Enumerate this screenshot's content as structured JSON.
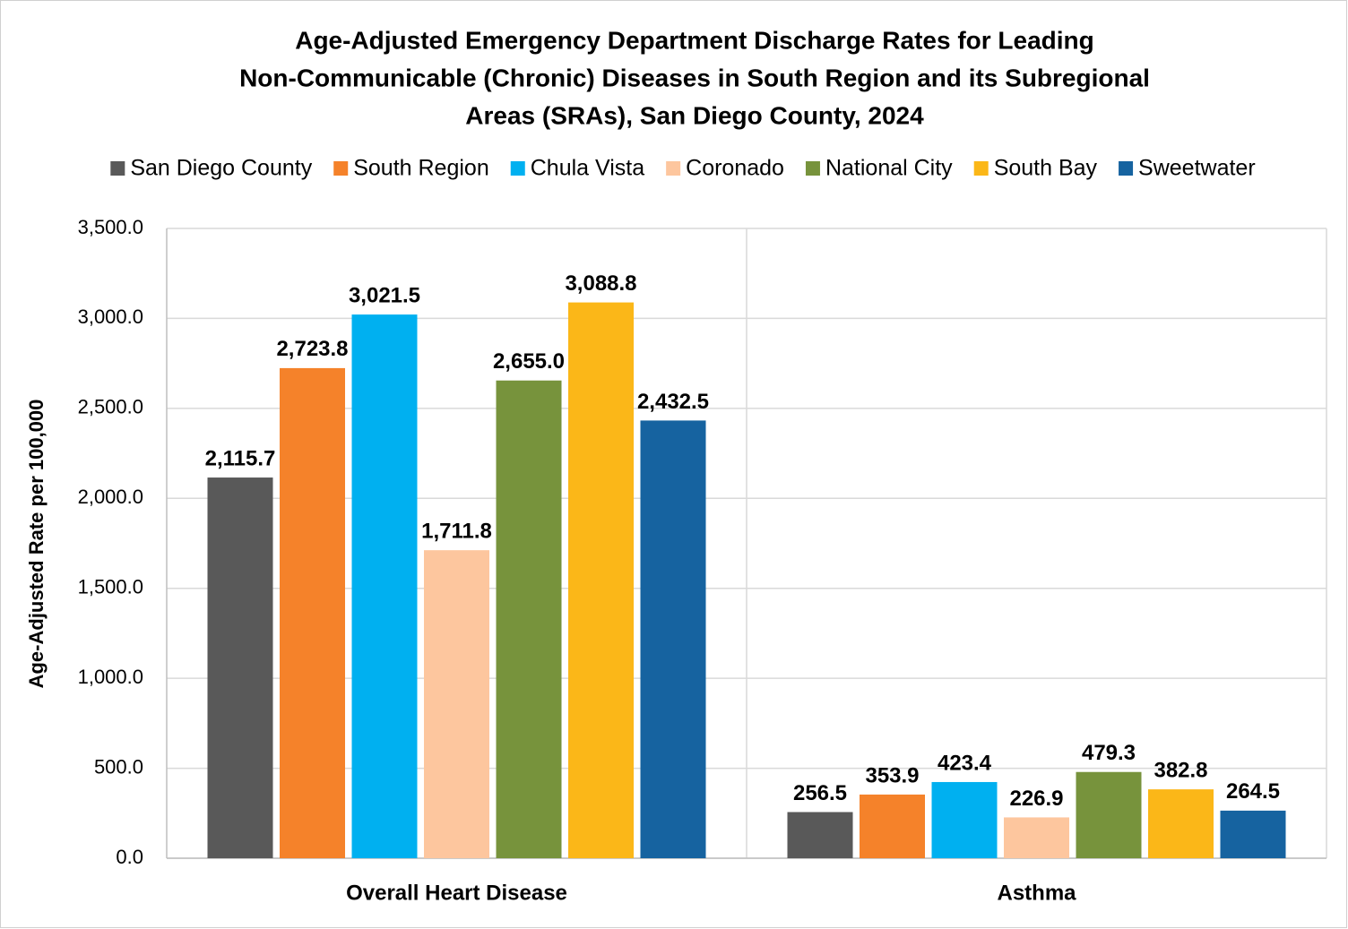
{
  "chart_data": {
    "type": "bar",
    "title": [
      "Age-Adjusted Emergency Department Discharge Rates for Leading",
      "Non-Communicable (Chronic) Diseases in South Region and its Subregional",
      "Areas (SRAs), San Diego County, 2024"
    ],
    "y_label": "Age-Adjusted Rate per 100,000",
    "categories": [
      "Overall Heart Disease",
      "Asthma"
    ],
    "series": [
      {
        "name": "San Diego County",
        "color": "#595959",
        "values": [
          2115.7,
          256.5
        ],
        "value_labels": [
          "2,115.7",
          "256.5"
        ]
      },
      {
        "name": "South Region",
        "color": "#f5822a",
        "values": [
          2723.8,
          353.9
        ],
        "value_labels": [
          "2,723.8",
          "353.9"
        ]
      },
      {
        "name": "Chula Vista",
        "color": "#00b0f0",
        "values": [
          3021.5,
          423.4
        ],
        "value_labels": [
          "3,021.5",
          "423.4"
        ]
      },
      {
        "name": "Coronado",
        "color": "#fdc69e",
        "values": [
          1711.8,
          226.9
        ],
        "value_labels": [
          "1,711.8",
          "226.9"
        ]
      },
      {
        "name": "National City",
        "color": "#77933c",
        "values": [
          2655.0,
          479.3
        ],
        "value_labels": [
          "2,655.0",
          "479.3"
        ]
      },
      {
        "name": "South Bay",
        "color": "#fbb718",
        "values": [
          3088.8,
          382.8
        ],
        "value_labels": [
          "3,088.8",
          "382.8"
        ]
      },
      {
        "name": "Sweetwater",
        "color": "#1663a0",
        "values": [
          2432.5,
          264.5
        ],
        "value_labels": [
          "2,432.5",
          "264.5"
        ]
      }
    ],
    "ylim": [
      0,
      3500
    ],
    "yticks": [
      {
        "value": 0,
        "label": "0.0"
      },
      {
        "value": 500,
        "label": "500.0"
      },
      {
        "value": 1000,
        "label": "1,000.0"
      },
      {
        "value": 1500,
        "label": "1,500.0"
      },
      {
        "value": 2000,
        "label": "2,000.0"
      },
      {
        "value": 2500,
        "label": "2,500.0"
      },
      {
        "value": 3000,
        "label": "3,000.0"
      },
      {
        "value": 3500,
        "label": "3,500.0"
      }
    ],
    "grid": true,
    "legend": "top"
  }
}
